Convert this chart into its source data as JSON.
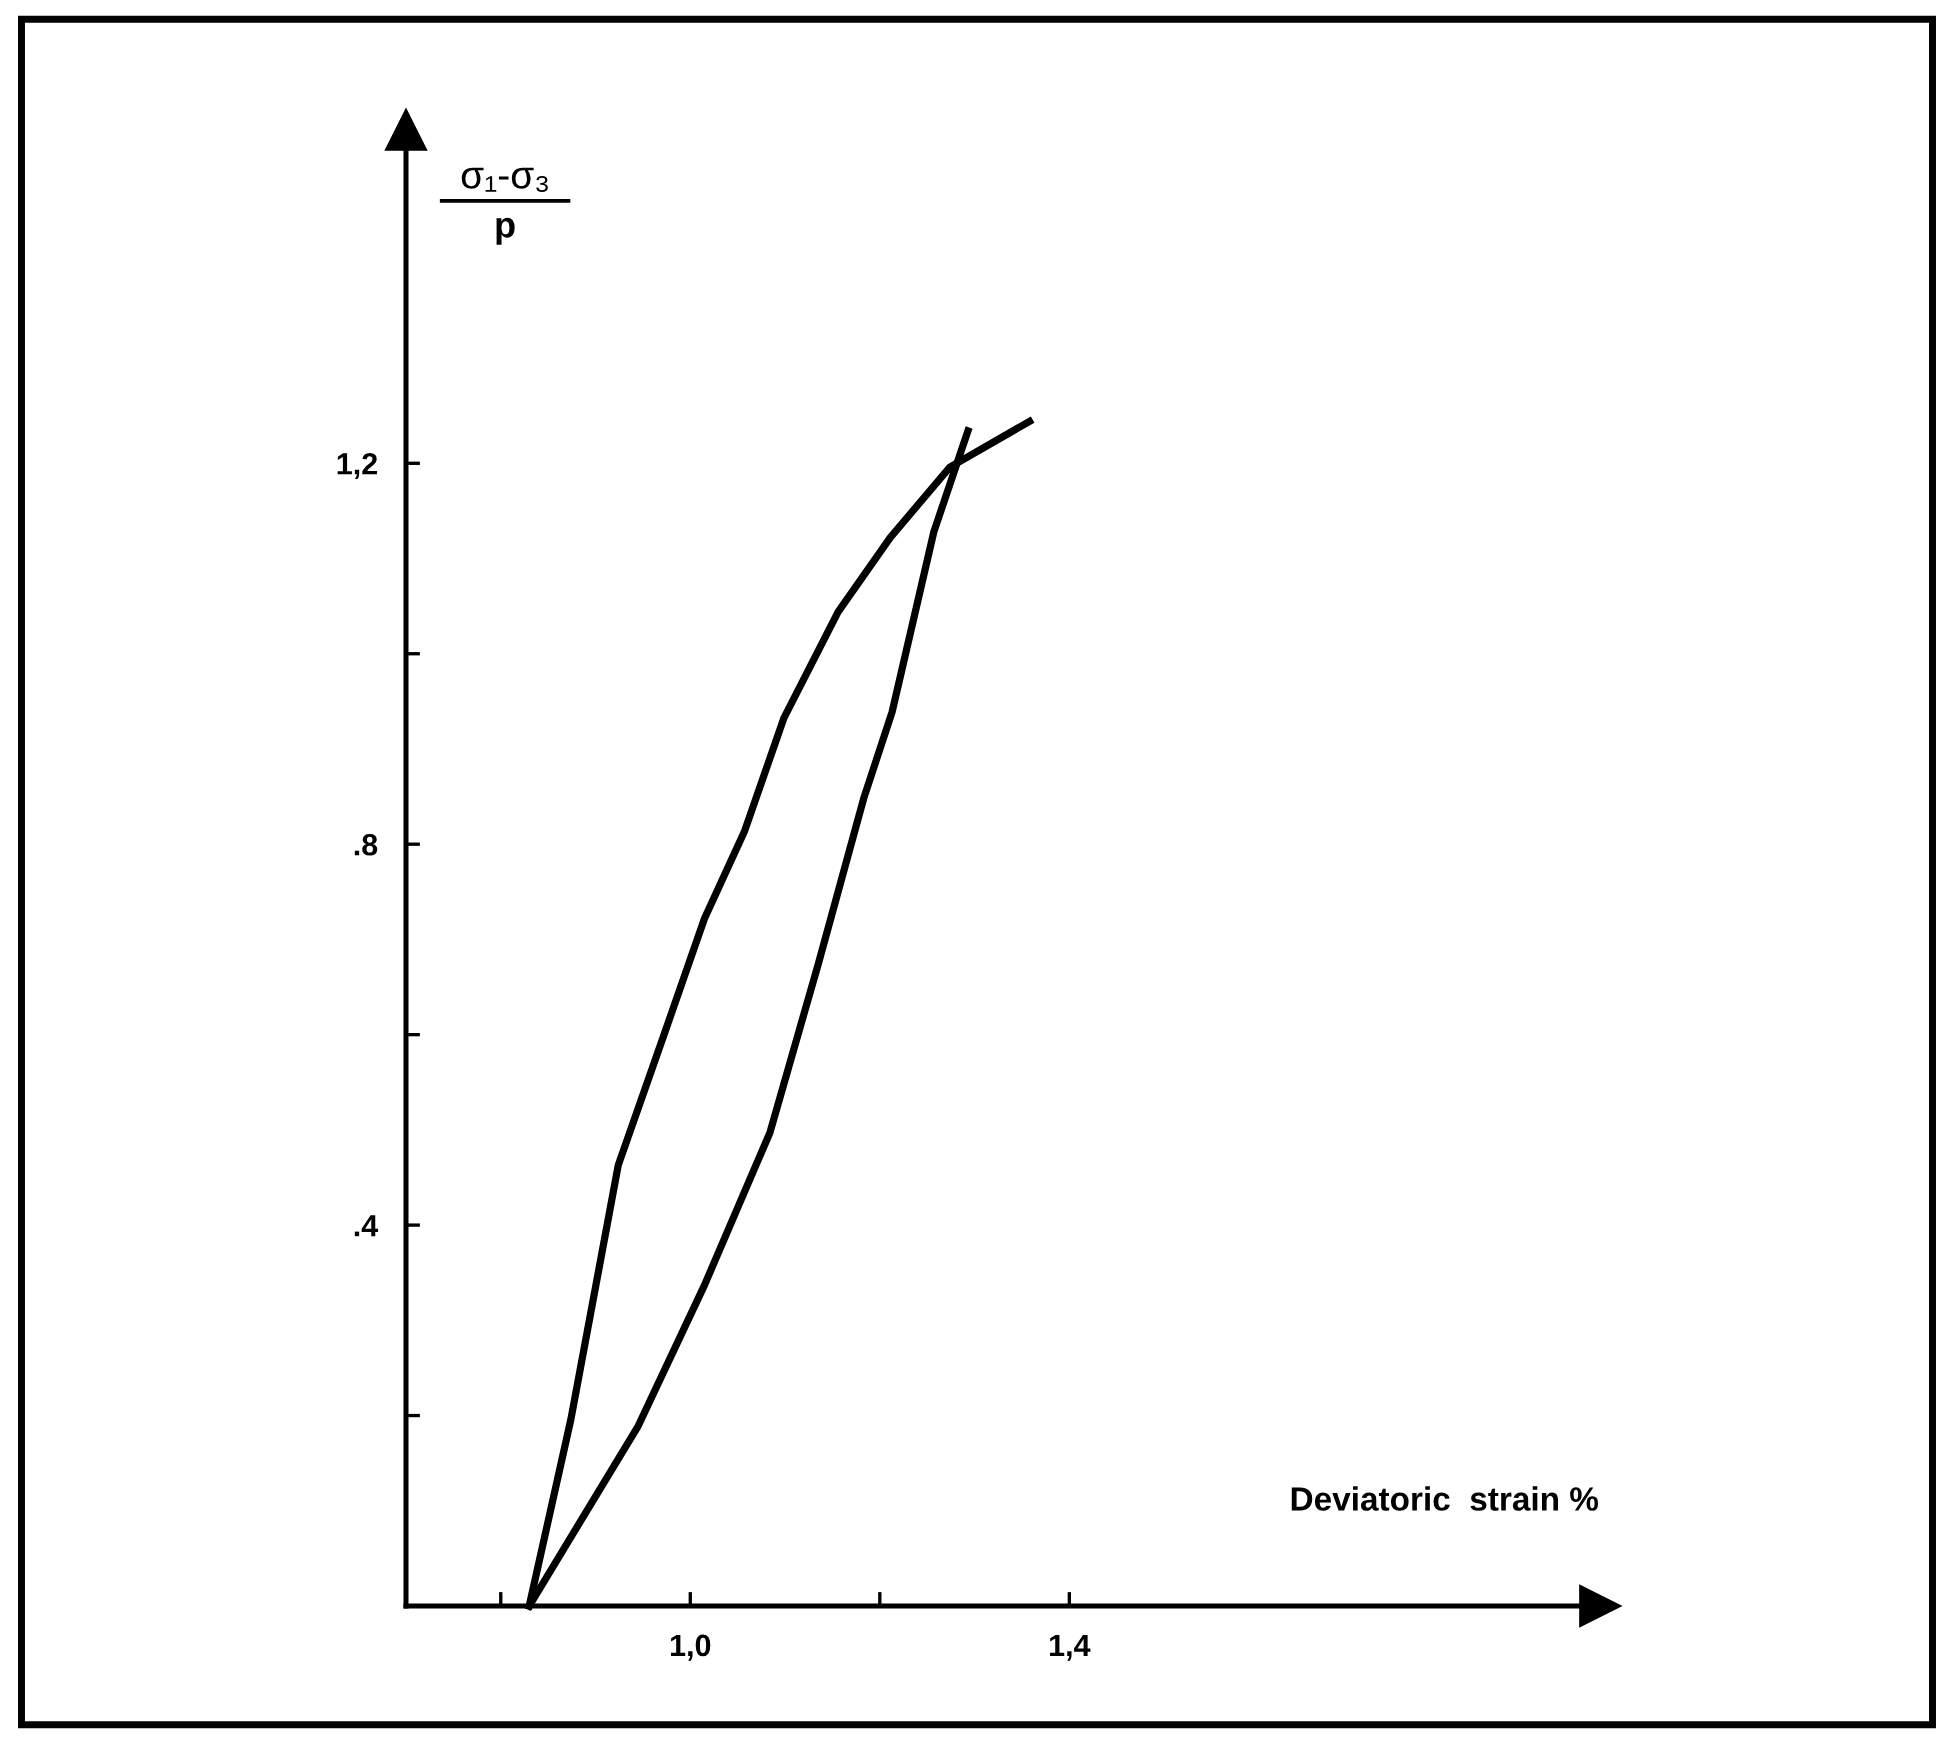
{
  "chart_data": {
    "type": "line",
    "xlabel": "Deviatoric  strain %",
    "ylabel": "σ₁-σ₃\np",
    "xlim": [
      0.7,
      1.96
    ],
    "ylim": [
      0,
      1.55
    ],
    "xticks": [
      {
        "value": 0.8,
        "label": null
      },
      {
        "value": 1.0,
        "label": "1,0"
      },
      {
        "value": 1.2,
        "label": null
      },
      {
        "value": 1.4,
        "label": "1,4"
      }
    ],
    "yticks": [
      {
        "value": 0.2,
        "label": null
      },
      {
        "value": 0.4,
        "label": ".4"
      },
      {
        "value": 0.6,
        "label": null
      },
      {
        "value": 0.8,
        "label": ".8"
      },
      {
        "value": 1.0,
        "label": null
      },
      {
        "value": 1.2,
        "label": "1,2"
      }
    ],
    "grid": false,
    "legend": false,
    "marker": "none",
    "line_style": "solid",
    "series": [
      {
        "color": "#000000",
        "x": [
          0.83,
          0.874,
          0.924,
          0.973,
          1.015,
          1.057,
          1.099,
          1.156,
          1.211,
          1.274,
          1.358
        ],
        "values": [
          0,
          0.196,
          0.463,
          0.602,
          0.722,
          0.813,
          0.933,
          1.044,
          1.122,
          1.196,
          1.244
        ]
      },
      {
        "color": "#000000",
        "x": [
          0.83,
          0.945,
          1.015,
          1.084,
          1.135,
          1.183,
          1.213,
          1.257,
          1.293
        ],
        "values": [
          0,
          0.189,
          0.337,
          0.497,
          0.674,
          0.848,
          0.939,
          1.128,
          1.234
        ]
      }
    ]
  }
}
